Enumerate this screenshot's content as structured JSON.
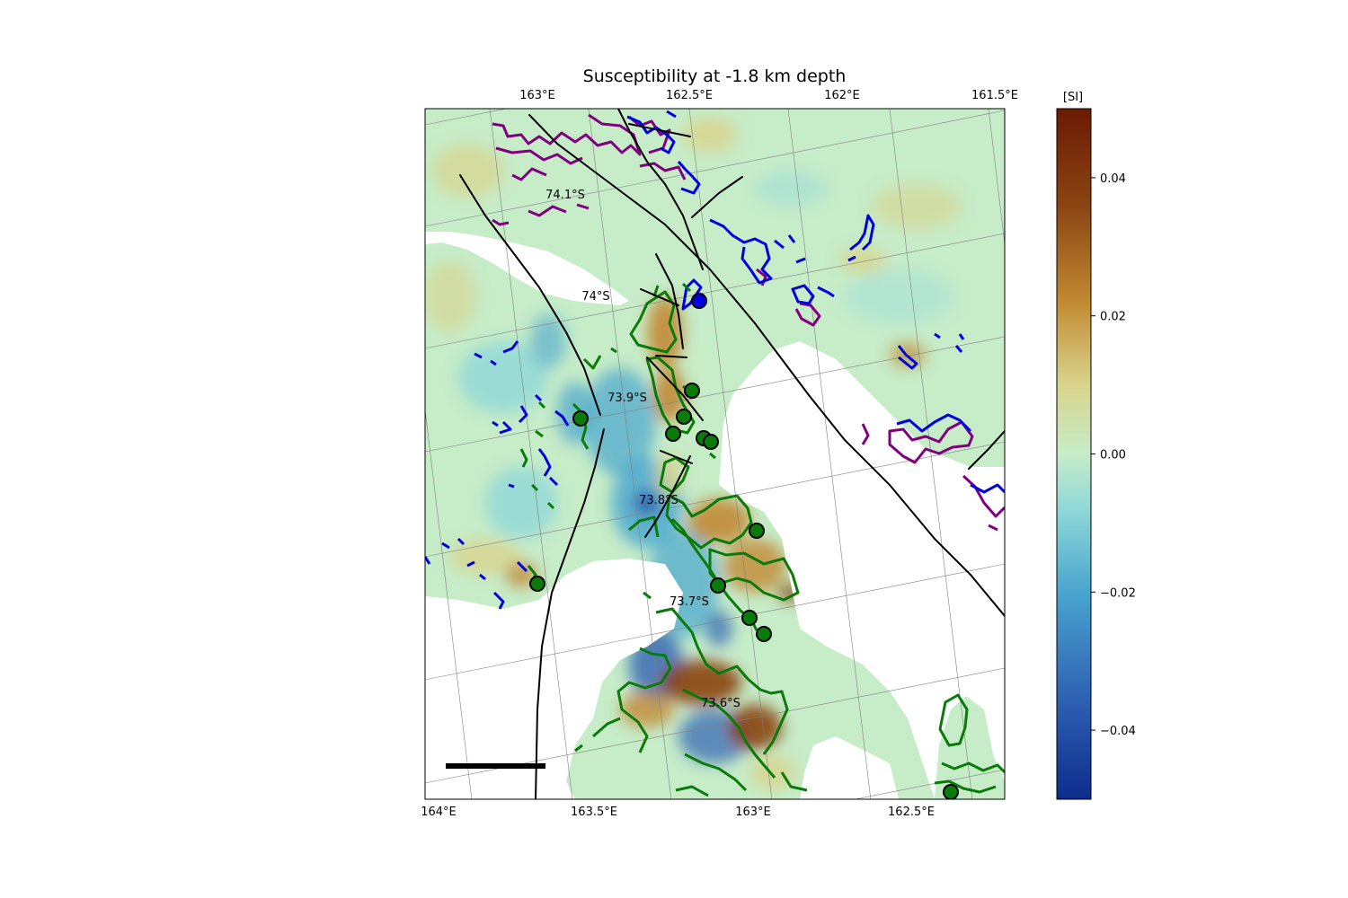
{
  "title": "Susceptibility at -1.8 km depth",
  "top_lon_labels": [
    "163°E",
    "162.5°E",
    "162°E",
    "161.5°E"
  ],
  "bottom_lon_labels": [
    "164°E",
    "163.5°E",
    "163°E",
    "162.5°E"
  ],
  "lat_labels": [
    "74.1°S",
    "74°S",
    "73.9°S",
    "73.8°S",
    "73.7°S",
    "73.6°S"
  ],
  "colorbar": {
    "unit_label": "[SI]",
    "ticks": [
      "0.04",
      "0.02",
      "0.00",
      "−0.02",
      "−0.04"
    ],
    "tick_values": [
      0.04,
      0.02,
      0.0,
      -0.02,
      -0.04
    ],
    "range": [
      -0.05,
      0.05
    ],
    "colormap": [
      "#0c2c8c",
      "#2f63b3",
      "#49a5cf",
      "#8fd8d8",
      "#c6ecc8",
      "#d9d48c",
      "#c28a33",
      "#8a4412",
      "#6b1a04"
    ]
  },
  "colors": {
    "green_outline": "#0a7a0a",
    "blue_outline": "#0000dd",
    "purple_outline": "#800080",
    "fault_line": "#000000",
    "no_data": "#ffffff",
    "graticule": "#808080"
  }
}
